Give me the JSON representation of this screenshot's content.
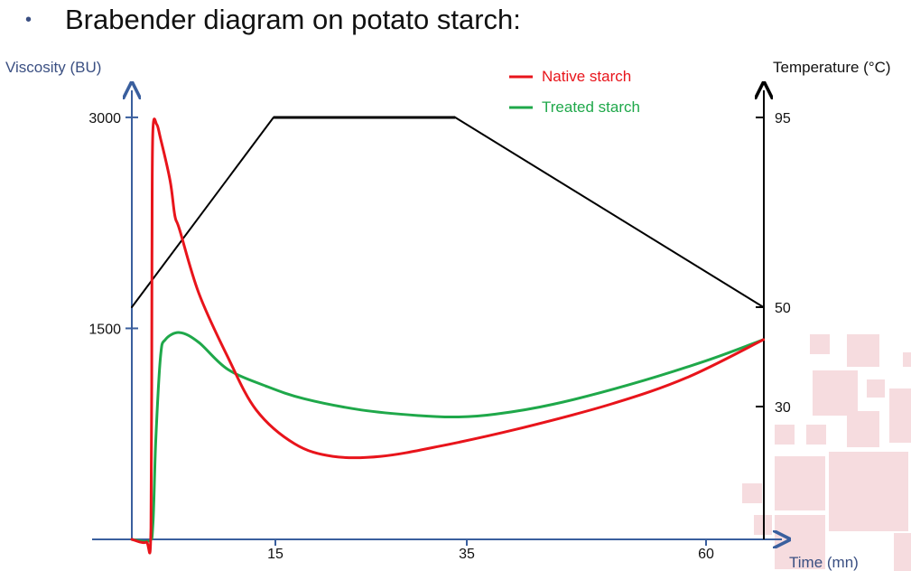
{
  "slide": {
    "bullet": "•",
    "title": "Brabender diagram on potato starch:"
  },
  "colors": {
    "viscosity_axis": "#3a5f9e",
    "temperature_axis": "#000000",
    "native": "#e8141b",
    "treated": "#1fa84a",
    "temperature": "#000000",
    "decor": "#f6dcdf"
  },
  "chart_data": {
    "type": "line",
    "xlabel": "Time (mn)",
    "ylabel_left": "Viscosity (BU)",
    "ylabel_right": "Temperature (°C)",
    "x_ticks": [
      15,
      35,
      60
    ],
    "y_left_ticks": [
      1500,
      3000
    ],
    "y_right_ticks": [
      30,
      50,
      95
    ],
    "legend_position": "top-center",
    "series": [
      {
        "name": "Native starch",
        "axis": "left",
        "x": [
          0,
          1.5,
          2.0,
          2.1,
          2.2,
          2.6,
          3.0,
          4.0,
          4.5,
          5.0,
          7.0,
          10.0,
          13.0,
          17.0,
          21.0,
          26.0,
          32.0,
          40.0,
          50.0,
          58.0,
          66.0
        ],
        "values": [
          0,
          -20,
          80,
          2000,
          2900,
          2950,
          2850,
          2550,
          2300,
          2200,
          1750,
          1300,
          920,
          680,
          590,
          590,
          660,
          780,
          960,
          1150,
          1420
        ]
      },
      {
        "name": "Treated starch",
        "axis": "left",
        "x": [
          0,
          1.8,
          2.2,
          2.5,
          3.0,
          3.5,
          5.0,
          7.0,
          10.0,
          14.0,
          18.0,
          24.0,
          30.0,
          34.0,
          38.0,
          44.0,
          52.0,
          60.0,
          66.0
        ],
        "values": [
          0,
          -10,
          100,
          700,
          1300,
          1420,
          1470,
          1400,
          1210,
          1090,
          1000,
          920,
          880,
          870,
          890,
          960,
          1100,
          1270,
          1420
        ]
      },
      {
        "name": "Temperature",
        "axis": "right",
        "x": [
          0,
          14.8,
          33.8,
          66.0
        ],
        "values": [
          50,
          95,
          95,
          50
        ]
      }
    ]
  }
}
